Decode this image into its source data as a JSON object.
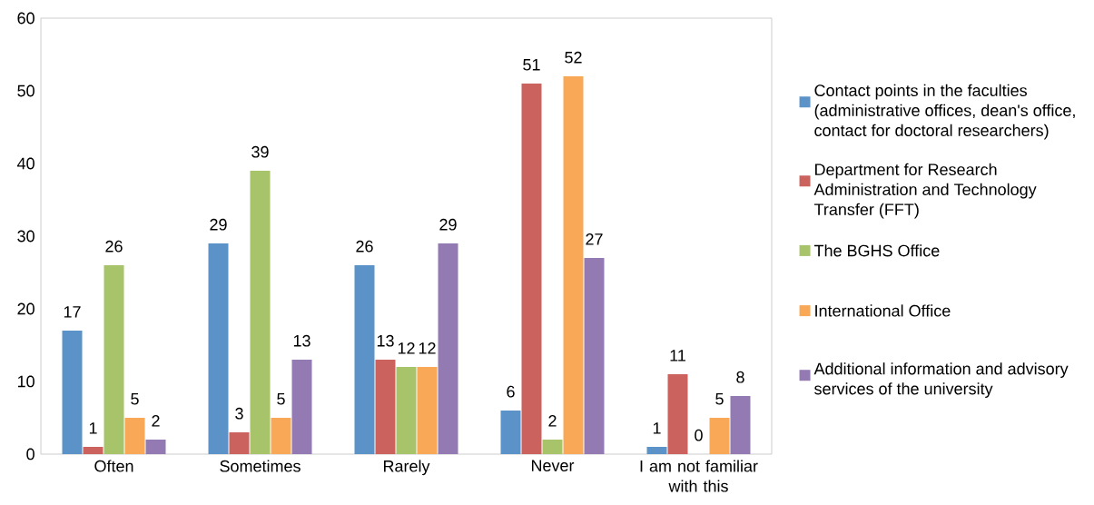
{
  "chart_data": {
    "type": "bar",
    "categories": [
      "Often",
      "Sometimes",
      "Rarely",
      "Never",
      "I am not familiar with this"
    ],
    "series": [
      {
        "name": "Contact points in the faculties (administrative offices, dean's office, contact for doctoral researchers)",
        "color": "#5b93c9",
        "values": [
          17,
          29,
          26,
          6,
          1
        ]
      },
      {
        "name": "Department for Research Administration and Technology Transfer (FFT)",
        "color": "#cc625d",
        "values": [
          1,
          3,
          13,
          51,
          11
        ]
      },
      {
        "name": "The BGHS Office",
        "color": "#a7c46a",
        "values": [
          26,
          39,
          12,
          2,
          0
        ]
      },
      {
        "name": "International Office",
        "color": "#f8a857",
        "values": [
          5,
          5,
          12,
          52,
          5
        ]
      },
      {
        "name": "Additional information and advisory services of the university",
        "color": "#937ab3",
        "values": [
          2,
          13,
          29,
          27,
          8
        ]
      }
    ],
    "ylim": [
      0,
      60
    ],
    "yticks": [
      0,
      10,
      20,
      30,
      40,
      50,
      60
    ],
    "data_labels": true,
    "legend": "right"
  }
}
